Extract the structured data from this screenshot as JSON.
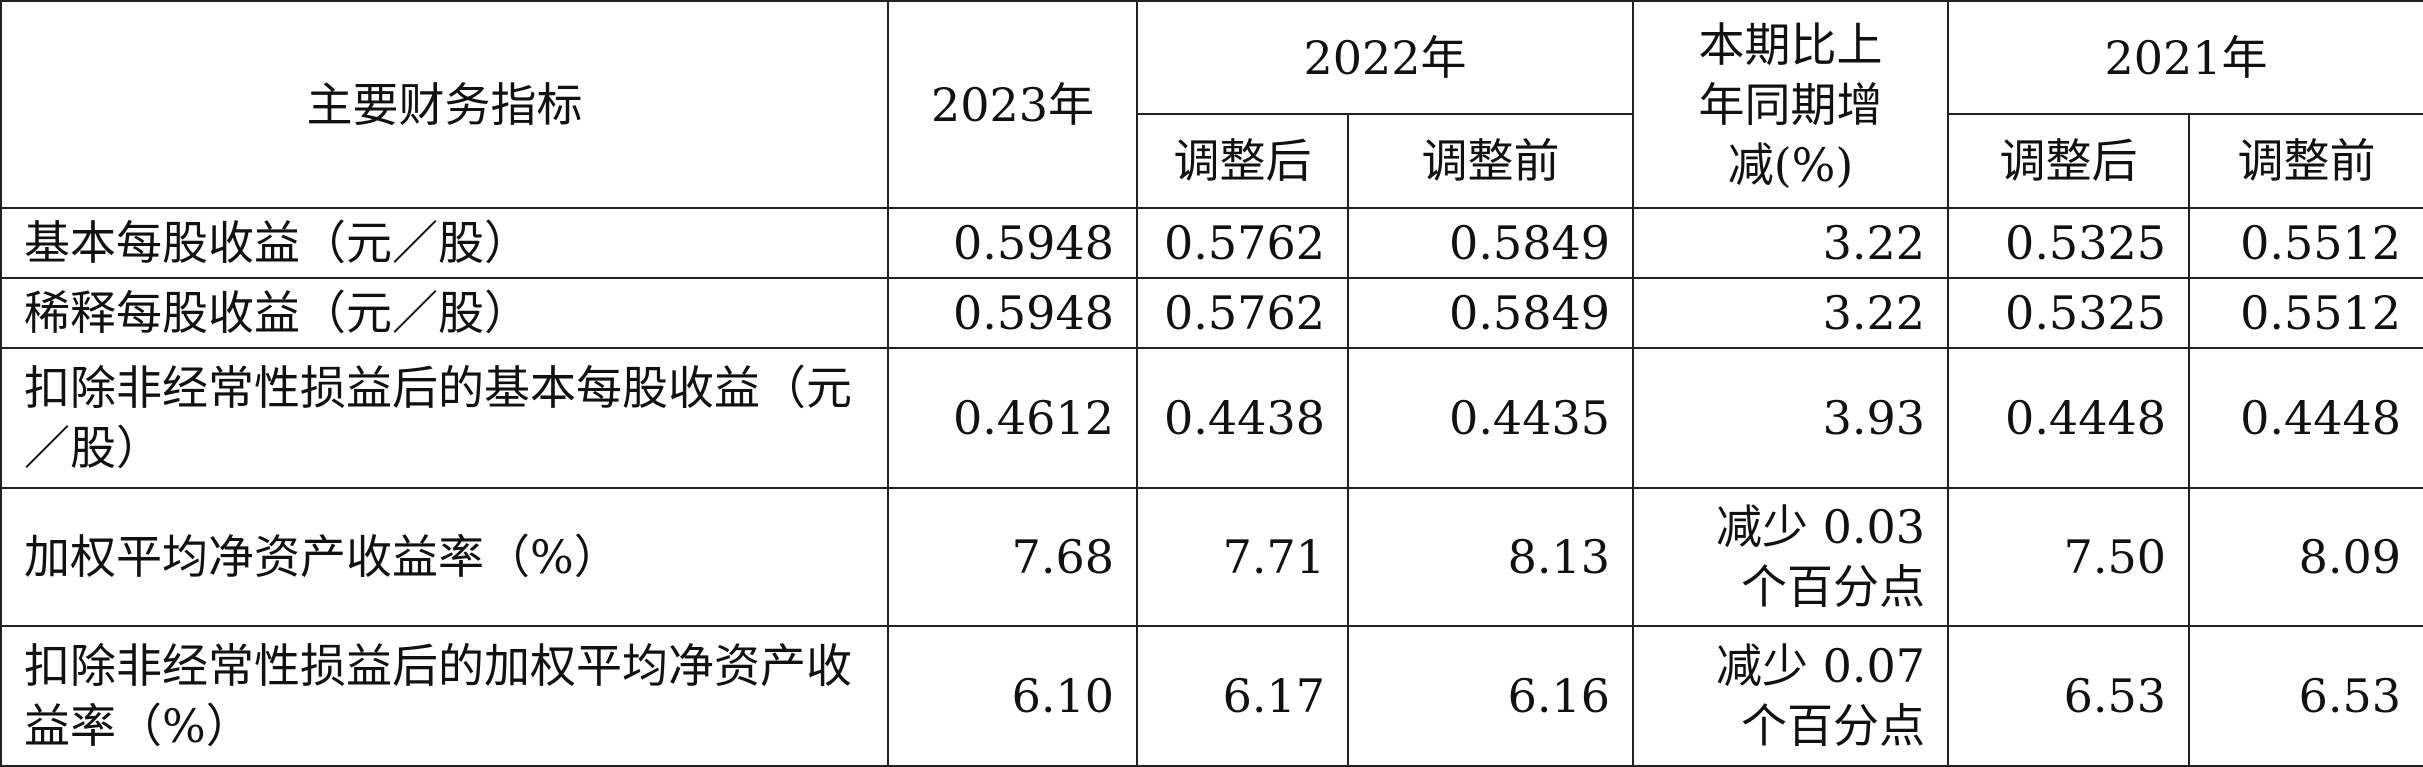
{
  "table": {
    "header": {
      "indicator": "主要财务指标",
      "y2023": "2023年",
      "y2022": "2022年",
      "y2022_adjusted": "调整后",
      "y2022_before": "调整前",
      "yoy_line1": "本期比上",
      "yoy_line2": "年同期增",
      "yoy_line3": "减(%)",
      "y2021": "2021年",
      "y2021_adjusted": "调整后",
      "y2021_before": "调整前"
    },
    "rows": [
      {
        "label": "基本每股收益（元／股）",
        "v2023": "0.5948",
        "v2022_adj": "0.5762",
        "v2022_pre": "0.5849",
        "change_line1": "3.22",
        "change_line2": "",
        "v2021_adj": "0.5325",
        "v2021_pre": "0.5512"
      },
      {
        "label": "稀释每股收益（元／股）",
        "v2023": "0.5948",
        "v2022_adj": "0.5762",
        "v2022_pre": "0.5849",
        "change_line1": "3.22",
        "change_line2": "",
        "v2021_adj": "0.5325",
        "v2021_pre": "0.5512"
      },
      {
        "label": "扣除非经常性损益后的基本每股收益（元／股）",
        "v2023": "0.4612",
        "v2022_adj": "0.4438",
        "v2022_pre": "0.4435",
        "change_line1": "3.93",
        "change_line2": "",
        "v2021_adj": "0.4448",
        "v2021_pre": "0.4448"
      },
      {
        "label": "加权平均净资产收益率（%）",
        "v2023": "7.68",
        "v2022_adj": "7.71",
        "v2022_pre": "8.13",
        "change_line1": "减少 0.03",
        "change_line2": "个百分点",
        "v2021_adj": "7.50",
        "v2021_pre": "8.09"
      },
      {
        "label": "扣除非经常性损益后的加权平均净资产收益率（%）",
        "v2023": "6.10",
        "v2022_adj": "6.17",
        "v2022_pre": "6.16",
        "change_line1": "减少 0.07",
        "change_line2": "个百分点",
        "v2021_adj": "6.53",
        "v2021_pre": "6.53"
      }
    ]
  }
}
